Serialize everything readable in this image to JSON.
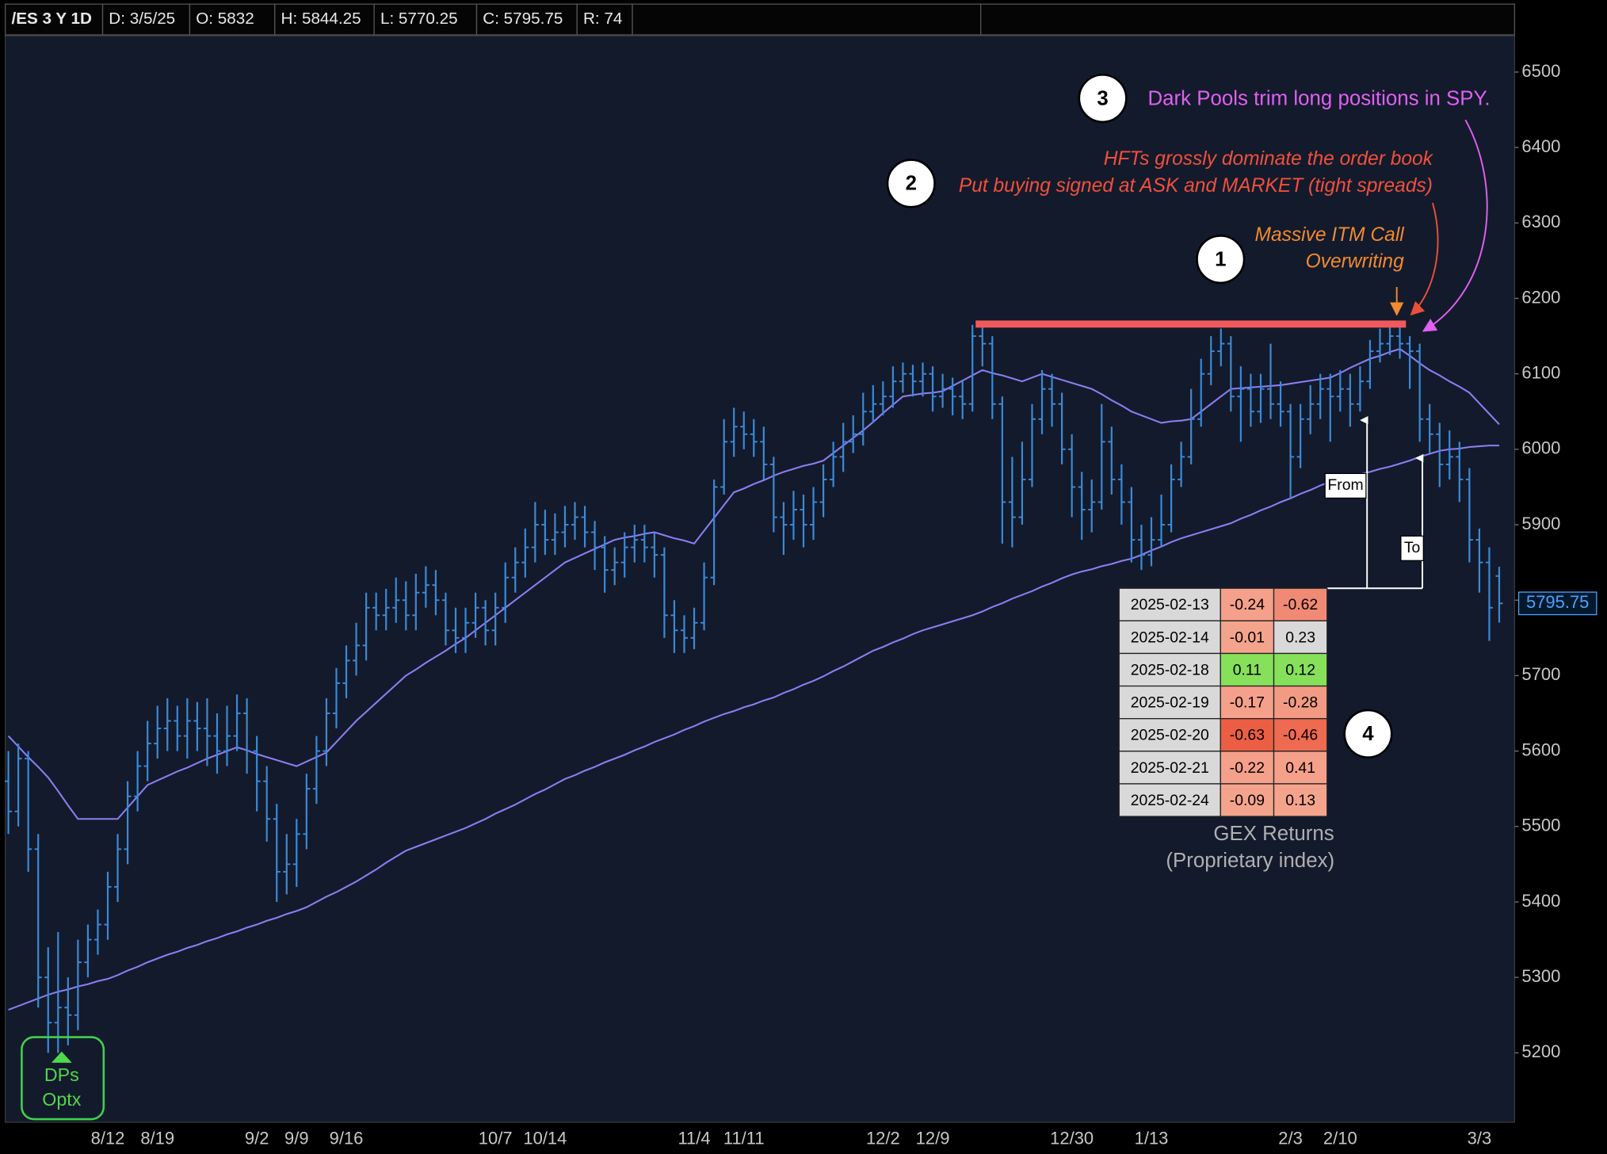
{
  "header": [
    "/ES 3 Y 1D",
    "D: 3/5/25",
    "O: 5832",
    "H: 5844.25",
    "L: 5770.25",
    "C: 5795.75",
    "R: 74"
  ],
  "chart_data": {
    "type": "ohlc",
    "categories": [
      null,
      null,
      null,
      null,
      null,
      null,
      null,
      null,
      null,
      null,
      "8/12",
      null,
      null,
      null,
      null,
      "8/19",
      null,
      null,
      null,
      null,
      null,
      null,
      null,
      null,
      null,
      "9/2",
      null,
      null,
      null,
      "9/9",
      null,
      null,
      null,
      null,
      "9/16",
      null,
      null,
      null,
      null,
      null,
      null,
      null,
      null,
      null,
      null,
      null,
      null,
      null,
      null,
      "10/7",
      null,
      null,
      null,
      null,
      "10/14",
      null,
      null,
      null,
      null,
      null,
      null,
      null,
      null,
      null,
      null,
      null,
      null,
      null,
      null,
      "11/4",
      null,
      null,
      null,
      null,
      "11/11",
      null,
      null,
      null,
      null,
      null,
      null,
      null,
      null,
      null,
      null,
      null,
      null,
      null,
      "12/2",
      null,
      null,
      null,
      null,
      "12/9",
      null,
      null,
      null,
      null,
      null,
      null,
      null,
      null,
      null,
      null,
      null,
      null,
      null,
      "12/30",
      null,
      null,
      null,
      null,
      null,
      null,
      null,
      "1/13",
      null,
      null,
      null,
      null,
      null,
      null,
      null,
      null,
      null,
      null,
      null,
      null,
      null,
      "2/3",
      null,
      null,
      null,
      null,
      "2/10",
      null,
      null,
      null,
      null,
      null,
      null,
      null,
      null,
      null,
      null,
      null,
      null,
      null,
      "3/3",
      null,
      null
    ],
    "open": [
      5560,
      5520,
      5590,
      5470,
      5300,
      5240,
      5260,
      5250,
      5320,
      5350,
      5370,
      5420,
      5470,
      5540,
      5580,
      5610,
      5630,
      5640,
      5620,
      5640,
      5630,
      5620,
      5600,
      5620,
      5650,
      5600,
      5560,
      5510,
      5440,
      5450,
      5490,
      5550,
      5600,
      5650,
      5690,
      5720,
      5740,
      5790,
      5780,
      5790,
      5800,
      5780,
      5810,
      5820,
      5800,
      5760,
      5750,
      5770,
      5790,
      5760,
      5790,
      5830,
      5850,
      5870,
      5900,
      5880,
      5890,
      5900,
      5910,
      5890,
      5870,
      5840,
      5850,
      5870,
      5880,
      5870,
      5860,
      5780,
      5760,
      5750,
      5770,
      5830,
      5950,
      6010,
      6030,
      6020,
      6010,
      5980,
      5910,
      5900,
      5920,
      5900,
      5930,
      5960,
      5990,
      6010,
      6020,
      6050,
      6060,
      6070,
      6090,
      6100,
      6090,
      6100,
      6070,
      6080,
      6070,
      6060,
      6150,
      6140,
      6060,
      5930,
      5910,
      5960,
      6040,
      6080,
      6060,
      6000,
      5950,
      5920,
      5930,
      6010,
      5960,
      5930,
      5880,
      5860,
      5880,
      5900,
      5960,
      5990,
      6040,
      6100,
      6130,
      6140,
      6070,
      6080,
      6050,
      6080,
      6060,
      6050,
      5990,
      6040,
      6060,
      6080,
      6070,
      6080,
      6060,
      6090,
      6130,
      6140,
      6150,
      6140,
      6130,
      6040,
      6020,
      5980,
      5990,
      5960,
      5880,
      5850,
      5832
    ],
    "high": [
      5600,
      5610,
      5600,
      5490,
      5340,
      5360,
      5300,
      5350,
      5370,
      5390,
      5440,
      5490,
      5560,
      5600,
      5640,
      5660,
      5670,
      5660,
      5670,
      5665,
      5670,
      5650,
      5660,
      5675,
      5670,
      5620,
      5580,
      5530,
      5490,
      5510,
      5570,
      5620,
      5670,
      5710,
      5740,
      5770,
      5810,
      5810,
      5815,
      5830,
      5825,
      5835,
      5845,
      5840,
      5810,
      5790,
      5790,
      5810,
      5800,
      5810,
      5850,
      5870,
      5895,
      5930,
      5920,
      5915,
      5925,
      5930,
      5925,
      5905,
      5885,
      5870,
      5890,
      5900,
      5900,
      5890,
      5870,
      5800,
      5780,
      5790,
      5850,
      5960,
      6040,
      6055,
      6050,
      6040,
      6030,
      5990,
      5930,
      5945,
      5940,
      5950,
      5980,
      6010,
      6035,
      6045,
      6075,
      6085,
      6090,
      6110,
      6115,
      6112,
      6115,
      6110,
      6100,
      6095,
      6090,
      6165,
      6165,
      6150,
      6070,
      5990,
      6010,
      6060,
      6105,
      6100,
      6075,
      6020,
      5970,
      5960,
      6060,
      6030,
      5980,
      5950,
      5900,
      5910,
      5940,
      5980,
      6010,
      6080,
      6120,
      6150,
      6160,
      6150,
      6110,
      6100,
      6100,
      6140,
      6090,
      6060,
      6060,
      6085,
      6100,
      6100,
      6105,
      6100,
      6110,
      6145,
      6160,
      6166,
      6165,
      6150,
      6140,
      6060,
      6035,
      6025,
      6010,
      5975,
      5895,
      5870,
      5844.25
    ],
    "low": [
      5490,
      5500,
      5440,
      5260,
      5200,
      5200,
      5210,
      5230,
      5300,
      5330,
      5350,
      5400,
      5450,
      5520,
      5560,
      5590,
      5600,
      5600,
      5590,
      5600,
      5580,
      5570,
      5580,
      5600,
      5570,
      5520,
      5480,
      5400,
      5410,
      5420,
      5470,
      5530,
      5580,
      5630,
      5670,
      5700,
      5720,
      5760,
      5760,
      5770,
      5760,
      5760,
      5790,
      5780,
      5740,
      5730,
      5730,
      5750,
      5740,
      5740,
      5770,
      5810,
      5830,
      5850,
      5860,
      5860,
      5870,
      5880,
      5870,
      5840,
      5810,
      5820,
      5830,
      5850,
      5850,
      5830,
      5750,
      5730,
      5730,
      5735,
      5760,
      5820,
      5940,
      5990,
      6000,
      5990,
      5960,
      5890,
      5860,
      5880,
      5870,
      5880,
      5910,
      5950,
      5970,
      5995,
      6005,
      6035,
      6045,
      6055,
      6075,
      6070,
      6070,
      6050,
      6055,
      6045,
      6040,
      6050,
      6110,
      6040,
      5875,
      5870,
      5900,
      5950,
      6020,
      6030,
      5980,
      5910,
      5880,
      5890,
      5920,
      5940,
      5900,
      5850,
      5840,
      5845,
      5870,
      5890,
      5950,
      5980,
      6030,
      6085,
      6110,
      6050,
      6010,
      6030,
      6035,
      6040,
      6030,
      5935,
      5975,
      6020,
      6040,
      6010,
      6050,
      6030,
      6050,
      6080,
      6115,
      6125,
      6120,
      6080,
      6010,
      5995,
      5950,
      5960,
      5930,
      5850,
      5810,
      5746,
      5770.25
    ],
    "close": [
      5520,
      5590,
      5470,
      5300,
      5240,
      5260,
      5250,
      5320,
      5350,
      5370,
      5420,
      5470,
      5540,
      5580,
      5610,
      5630,
      5640,
      5620,
      5640,
      5630,
      5620,
      5600,
      5620,
      5650,
      5600,
      5560,
      5510,
      5440,
      5450,
      5490,
      5550,
      5600,
      5650,
      5690,
      5720,
      5740,
      5790,
      5780,
      5790,
      5800,
      5780,
      5810,
      5820,
      5800,
      5760,
      5750,
      5770,
      5790,
      5760,
      5790,
      5830,
      5850,
      5870,
      5900,
      5880,
      5890,
      5900,
      5910,
      5890,
      5870,
      5840,
      5850,
      5870,
      5880,
      5870,
      5860,
      5780,
      5760,
      5750,
      5770,
      5830,
      5950,
      6010,
      6030,
      6020,
      6010,
      5980,
      5910,
      5900,
      5920,
      5900,
      5930,
      5960,
      5990,
      6010,
      6020,
      6050,
      6060,
      6070,
      6090,
      6100,
      6090,
      6100,
      6070,
      6080,
      6070,
      6060,
      6150,
      6140,
      6060,
      5930,
      5910,
      5960,
      6040,
      6080,
      6060,
      6000,
      5950,
      5920,
      5930,
      6010,
      5960,
      5930,
      5880,
      5860,
      5880,
      5900,
      5960,
      5990,
      6040,
      6100,
      6130,
      6140,
      6070,
      6080,
      6050,
      6080,
      6060,
      6050,
      5990,
      6040,
      6060,
      6080,
      6070,
      6080,
      6060,
      6090,
      6130,
      6140,
      6150,
      6140,
      6130,
      6040,
      6020,
      5980,
      5990,
      5960,
      5880,
      5850,
      5790,
      5795.75
    ],
    "color": "#3b8ad6",
    "overlays": [
      {
        "color": "#8b7ef2",
        "values": [
          5620,
          5606,
          5592,
          5579,
          5565,
          5547,
          5528,
          5510,
          5510,
          5510,
          5510,
          5510,
          5525,
          5540,
          5555,
          5561,
          5567,
          5573,
          5578,
          5584,
          5590,
          5595,
          5600,
          5605,
          5601,
          5596,
          5592,
          5588,
          5584,
          5580,
          5586,
          5592,
          5598,
          5612,
          5626,
          5640,
          5652,
          5664,
          5676,
          5688,
          5700,
          5708,
          5717,
          5725,
          5733,
          5742,
          5750,
          5760,
          5770,
          5780,
          5790,
          5800,
          5810,
          5820,
          5830,
          5840,
          5850,
          5856,
          5862,
          5868,
          5874,
          5880,
          5883,
          5885,
          5888,
          5890,
          5886,
          5882,
          5879,
          5875,
          5892,
          5909,
          5926,
          5943,
          5948,
          5954,
          5959,
          5965,
          5970,
          5974,
          5978,
          5981,
          5985,
          5995,
          6005,
          6015,
          6025,
          6036,
          6048,
          6059,
          6070,
          6072,
          6074,
          6075,
          6077,
          6084,
          6091,
          6098,
          6105,
          6101,
          6098,
          6094,
          6090,
          6095,
          6100,
          6096,
          6092,
          6088,
          6084,
          6080,
          6073,
          6065,
          6058,
          6050,
          6045,
          6040,
          6035,
          6037,
          6038,
          6040,
          6050,
          6060,
          6070,
          6080,
          6081,
          6082,
          6083,
          6084,
          6085,
          6087,
          6089,
          6091,
          6093,
          6095,
          6101,
          6108,
          6114,
          6120,
          6124,
          6129,
          6133,
          6124,
          6114,
          6105,
          6098,
          6090,
          6083,
          6075,
          6061,
          6047,
          6033
        ]
      },
      {
        "color": "#8b7ef2",
        "values": [
          5257,
          5262,
          5267,
          5272,
          5277,
          5281,
          5284,
          5288,
          5291,
          5295,
          5298,
          5303,
          5309,
          5314,
          5320,
          5325,
          5330,
          5334,
          5339,
          5343,
          5348,
          5352,
          5357,
          5361,
          5366,
          5370,
          5375,
          5379,
          5384,
          5388,
          5393,
          5400,
          5407,
          5413,
          5420,
          5427,
          5435,
          5443,
          5452,
          5460,
          5468,
          5473,
          5478,
          5483,
          5488,
          5493,
          5498,
          5504,
          5510,
          5517,
          5523,
          5529,
          5536,
          5543,
          5549,
          5556,
          5563,
          5568,
          5574,
          5579,
          5585,
          5590,
          5595,
          5601,
          5606,
          5612,
          5617,
          5622,
          5628,
          5633,
          5639,
          5644,
          5649,
          5653,
          5658,
          5662,
          5667,
          5671,
          5677,
          5682,
          5688,
          5693,
          5699,
          5706,
          5712,
          5719,
          5726,
          5733,
          5738,
          5744,
          5749,
          5755,
          5760,
          5764,
          5768,
          5772,
          5776,
          5780,
          5785,
          5791,
          5796,
          5802,
          5807,
          5812,
          5818,
          5823,
          5829,
          5834,
          5838,
          5841,
          5845,
          5848,
          5852,
          5855,
          5860,
          5866,
          5871,
          5877,
          5882,
          5886,
          5890,
          5894,
          5898,
          5902,
          5908,
          5913,
          5919,
          5924,
          5930,
          5935,
          5941,
          5946,
          5952,
          5957,
          5960,
          5964,
          5967,
          5970,
          5974,
          5977,
          5981,
          5985,
          5990,
          5994,
          5998,
          6000,
          6001,
          6003,
          6004,
          6005,
          6005
        ]
      }
    ],
    "resistance_level": 6166,
    "resistance_color": "#f05a5a",
    "last_price_color": "#4aa3ff",
    "ylim": [
      5108,
      6548
    ],
    "yticks": [
      5200,
      5300,
      5400,
      5500,
      5600,
      5700,
      5800,
      5900,
      6000,
      6100,
      6200,
      6300,
      6400,
      6500
    ]
  },
  "annotations": {
    "note1": {
      "number": "1",
      "lines": [
        "Massive ITM Call",
        "Overwriting"
      ]
    },
    "note2": {
      "number": "2",
      "lines": [
        "HFTs grossly dominate the order book",
        "Put buying signed at ASK and MARKET (tight spreads)"
      ]
    },
    "note3": {
      "number": "3",
      "lines": [
        "Dark Pools trim long positions in SPY."
      ]
    },
    "note4": {
      "number": "4"
    },
    "from": "From",
    "to": "To",
    "badge": [
      "DPs",
      "Optx"
    ]
  },
  "gex_table": {
    "title": "GEX Returns",
    "subtitle": "(Proprietary index)",
    "rows": [
      {
        "date": "2025-02-13",
        "values": [
          -0.24,
          -0.62
        ],
        "colors": [
          "#f4a08a",
          "#f08a74"
        ]
      },
      {
        "date": "2025-02-14",
        "values": [
          -0.01,
          0.23
        ],
        "colors": [
          "#f4a48c",
          "#d9d9d9"
        ]
      },
      {
        "date": "2025-02-18",
        "values": [
          0.11,
          0.12
        ],
        "colors": [
          "#86e05a",
          "#86e05a"
        ]
      },
      {
        "date": "2025-02-19",
        "values": [
          -0.17,
          -0.28
        ],
        "colors": [
          "#f4a08a",
          "#f29a84"
        ]
      },
      {
        "date": "2025-02-20",
        "values": [
          -0.63,
          -0.46
        ],
        "colors": [
          "#ec5e44",
          "#ee6a50"
        ]
      },
      {
        "date": "2025-02-21",
        "values": [
          -0.22,
          0.41
        ],
        "colors": [
          "#f4a08a",
          "#f4a08a"
        ]
      },
      {
        "date": "2025-02-24",
        "values": [
          -0.09,
          0.13
        ],
        "colors": [
          "#f4a48c",
          "#f4a48c"
        ]
      }
    ]
  }
}
